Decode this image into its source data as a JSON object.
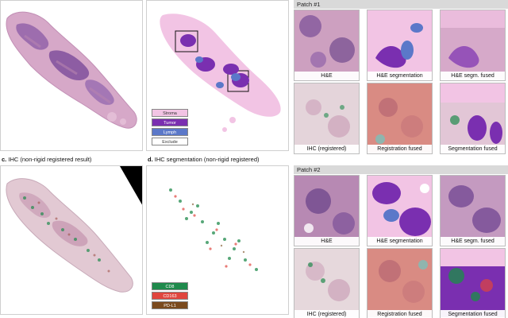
{
  "panels": {
    "c_caption_letter": "c.",
    "c_caption_text": "IHC (non-rigid registered result)",
    "d_caption_letter": "d.",
    "d_caption_text": "IHC segmentation (non-rigid registered)"
  },
  "seg_legend": [
    {
      "label": "Stroma",
      "bg": "#f2c4e4",
      "fg": "#333333"
    },
    {
      "label": "Tumor",
      "bg": "#7a2fb0",
      "fg": "#ffffff"
    },
    {
      "label": "Lymph",
      "bg": "#5b78c9",
      "fg": "#ffffff"
    },
    {
      "label": "Exclude",
      "bg": "#ffffff",
      "fg": "#333333"
    }
  ],
  "ihc_legend": [
    {
      "label": "CD8",
      "bg": "#1f8a4c",
      "fg": "#ffffff"
    },
    {
      "label": "CD163",
      "bg": "#e0453e",
      "fg": "#ffffff"
    },
    {
      "label": "PD-L1",
      "bg": "#7a4a1e",
      "fg": "#ffffff"
    }
  ],
  "patch1": {
    "title": "Patch #1",
    "tiles": [
      "H&E",
      "H&E segmentation",
      "H&E segm. fused",
      "IHC (registered)",
      "Registration fused",
      "Segmentation fused"
    ]
  },
  "patch2": {
    "title": "Patch #2",
    "tiles": [
      "H&E",
      "H&E segmentation",
      "H&E segm. fused",
      "IHC (registered)",
      "Registration fused",
      "Segmentation fused"
    ]
  },
  "colors": {
    "he_pink": "#d9a9c9",
    "he_purple": "#6b3f8f",
    "stroma": "#f2c4e4",
    "tumor": "#7a2fb0",
    "lymph": "#5b78c9",
    "ihc_base": "#e8d6dc",
    "cd8": "#1f8a4c",
    "cd163": "#e0453e"
  }
}
